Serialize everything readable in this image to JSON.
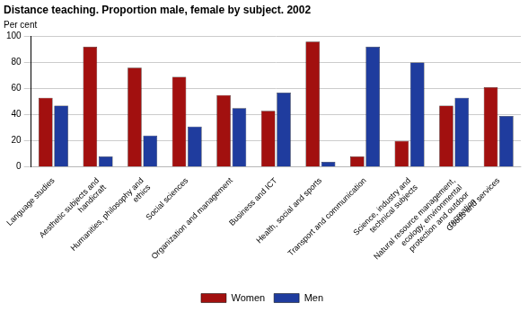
{
  "chart_data": {
    "type": "bar",
    "title": "Distance teaching. Proportion male, female by subject. 2002",
    "y_label": "Per cent",
    "categories": [
      "Language studies",
      "Aesthetic subjects and handicraft",
      "Humanities, philosophy and ethics",
      "Social sciences",
      "Organization and management",
      "Business and ICT",
      "Health, social and sports",
      "Transport and communication",
      "Science, industry and technical subjects",
      "Natural resource management, ecology, environmental protection and outdoor recreation",
      "Goods and services"
    ],
    "series": [
      {
        "name": "Women",
        "color": "#a2100f",
        "values": [
          53,
          92,
          76,
          69,
          55,
          43,
          96,
          8,
          20,
          47,
          61
        ]
      },
      {
        "name": "Men",
        "color": "#1f3c9e",
        "values": [
          47,
          8,
          24,
          31,
          45,
          57,
          4,
          92,
          80,
          53,
          39
        ]
      }
    ],
    "ylim": [
      0,
      100
    ],
    "yticks": [
      0,
      20,
      40,
      60,
      80,
      100
    ],
    "grid": true,
    "legend": "bottom"
  }
}
